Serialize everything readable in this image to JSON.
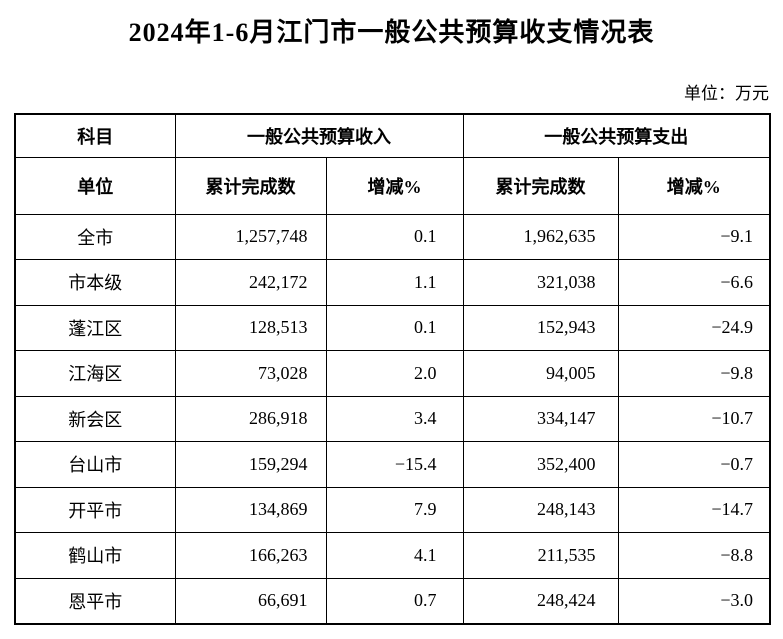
{
  "title": "2024年1-6月江门市一般公共预算收支情况表",
  "unit_note": "单位：万元",
  "table": {
    "header": {
      "subject": "科目",
      "unit": "单位",
      "income_group": "一般公共预算收入",
      "expense_group": "一般公共预算支出",
      "cumulative": "累计完成数",
      "change": "增减%"
    },
    "rows": [
      {
        "name": "全市",
        "income": "1,257,748",
        "income_change": "0.1",
        "expense": "1,962,635",
        "expense_change": "−9.1"
      },
      {
        "name": "市本级",
        "income": "242,172",
        "income_change": "1.1",
        "expense": "321,038",
        "expense_change": "−6.6"
      },
      {
        "name": "蓬江区",
        "income": "128,513",
        "income_change": "0.1",
        "expense": "152,943",
        "expense_change": "−24.9"
      },
      {
        "name": "江海区",
        "income": "73,028",
        "income_change": "2.0",
        "expense": "94,005",
        "expense_change": "−9.8"
      },
      {
        "name": "新会区",
        "income": "286,918",
        "income_change": "3.4",
        "expense": "334,147",
        "expense_change": "−10.7"
      },
      {
        "name": "台山市",
        "income": "159,294",
        "income_change": "−15.4",
        "expense": "352,400",
        "expense_change": "−0.7"
      },
      {
        "name": "开平市",
        "income": "134,869",
        "income_change": "7.9",
        "expense": "248,143",
        "expense_change": "−14.7"
      },
      {
        "name": "鹤山市",
        "income": "166,263",
        "income_change": "4.1",
        "expense": "211,535",
        "expense_change": "−8.8"
      },
      {
        "name": "恩平市",
        "income": "66,691",
        "income_change": "0.7",
        "expense": "248,424",
        "expense_change": "−3.0"
      }
    ]
  }
}
